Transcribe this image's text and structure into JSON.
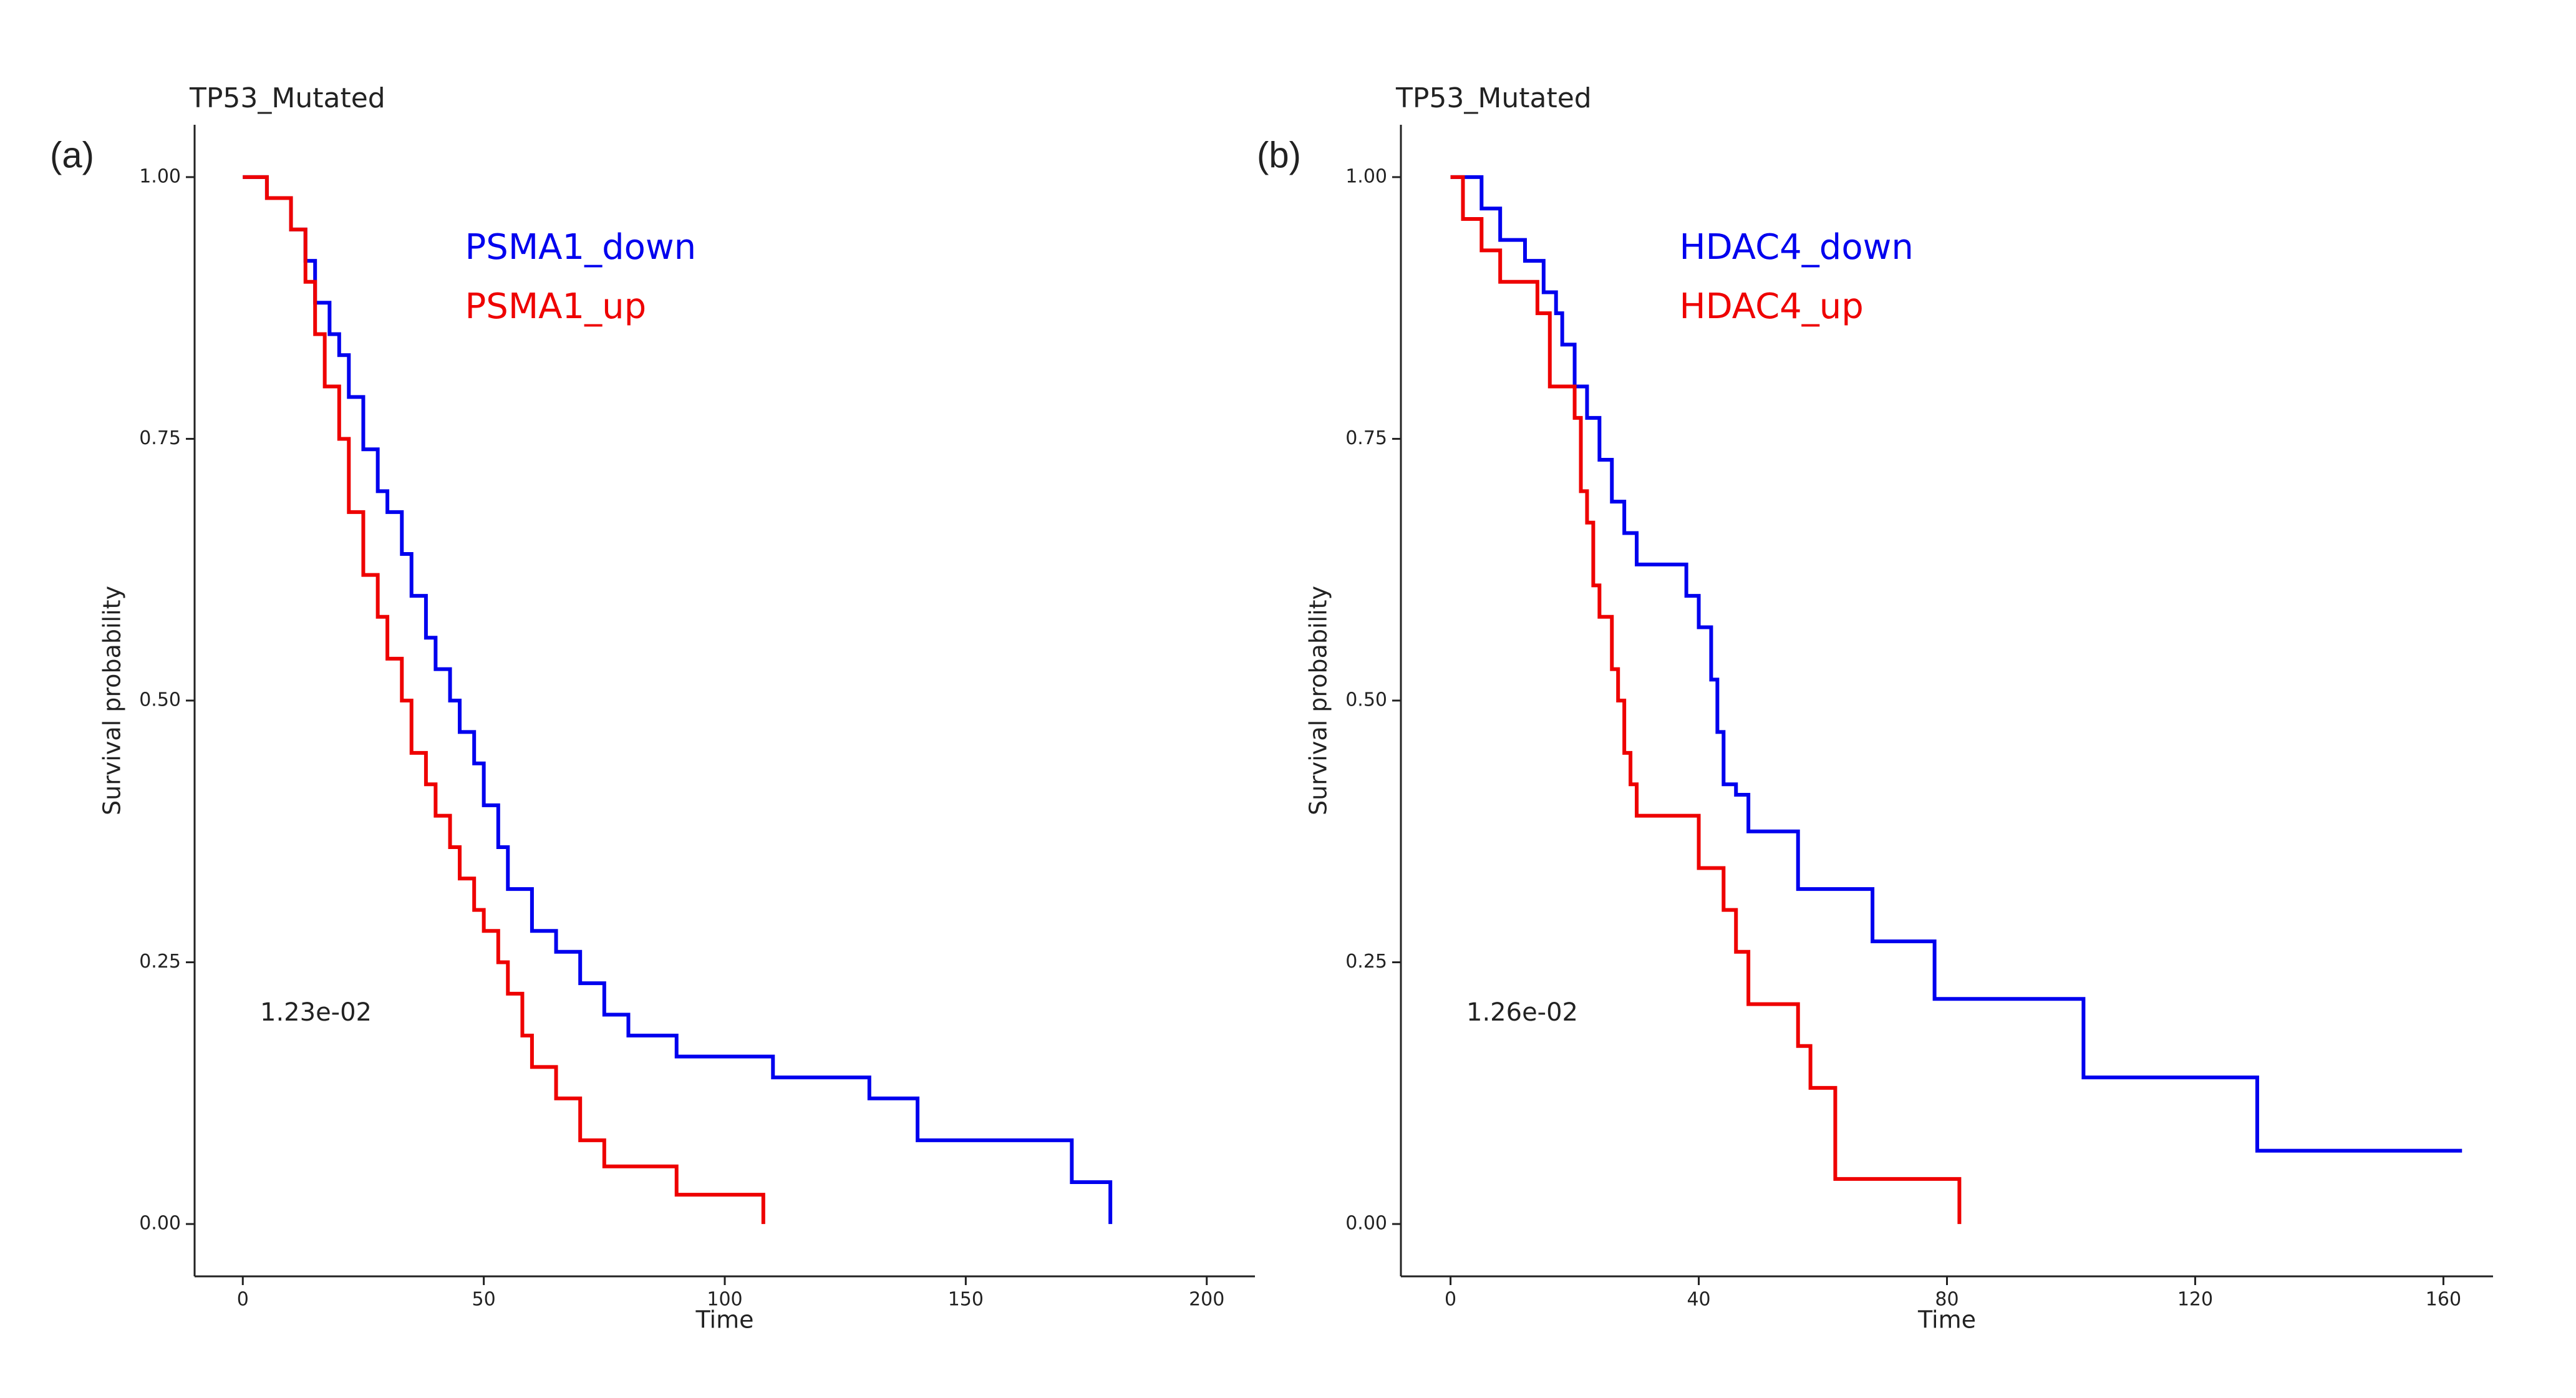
{
  "chart_data": [
    {
      "type": "step",
      "panel": "(a)",
      "title": "TP53_Mutated",
      "x_label": "Time",
      "y_label": "Survival probability",
      "annotation": "1.23e-02",
      "xlim": [
        -10,
        210
      ],
      "xticks": [
        0,
        50,
        100,
        150,
        200
      ],
      "ylim": [
        -0.05,
        1.05
      ],
      "yticks": [
        {
          "value": 0,
          "label": "0.00"
        },
        {
          "value": 0.25,
          "label": "0.25"
        },
        {
          "value": 0.5,
          "label": "0.50"
        },
        {
          "value": 0.75,
          "label": "0.75"
        },
        {
          "value": 1,
          "label": "1.00"
        }
      ],
      "series": [
        {
          "name": "PSMA1_down",
          "color": "#0000ee",
          "x": [
            0,
            5,
            10,
            13,
            15,
            18,
            20,
            22,
            25,
            28,
            30,
            33,
            35,
            38,
            40,
            43,
            45,
            48,
            50,
            53,
            55,
            60,
            65,
            70,
            75,
            80,
            90,
            110,
            130,
            140,
            172,
            180
          ],
          "values": [
            1,
            0.98,
            0.95,
            0.92,
            0.88,
            0.85,
            0.83,
            0.79,
            0.74,
            0.7,
            0.68,
            0.64,
            0.6,
            0.56,
            0.53,
            0.5,
            0.47,
            0.44,
            0.4,
            0.36,
            0.32,
            0.28,
            0.26,
            0.23,
            0.2,
            0.18,
            0.16,
            0.14,
            0.12,
            0.08,
            0.04,
            0
          ]
        },
        {
          "name": "PSMA1_up",
          "color": "#ee0000",
          "x": [
            0,
            5,
            10,
            13,
            15,
            17,
            20,
            22,
            25,
            28,
            30,
            33,
            35,
            38,
            40,
            43,
            45,
            48,
            50,
            53,
            55,
            58,
            60,
            65,
            70,
            75,
            90,
            108
          ],
          "values": [
            1,
            0.98,
            0.95,
            0.9,
            0.85,
            0.8,
            0.75,
            0.68,
            0.62,
            0.58,
            0.54,
            0.5,
            0.45,
            0.42,
            0.39,
            0.36,
            0.33,
            0.3,
            0.28,
            0.25,
            0.22,
            0.18,
            0.15,
            0.12,
            0.08,
            0.055,
            0.028,
            0
          ]
        }
      ]
    },
    {
      "type": "step",
      "panel": "(b)",
      "title": "TP53_Mutated",
      "x_label": "Time",
      "y_label": "Survival probability",
      "annotation": "1.26e-02",
      "xlim": [
        -8,
        168
      ],
      "xticks": [
        0,
        40,
        80,
        120,
        160
      ],
      "ylim": [
        -0.05,
        1.05
      ],
      "yticks": [
        {
          "value": 0,
          "label": "0.00"
        },
        {
          "value": 0.25,
          "label": "0.25"
        },
        {
          "value": 0.5,
          "label": "0.50"
        },
        {
          "value": 0.75,
          "label": "0.75"
        },
        {
          "value": 1,
          "label": "1.00"
        }
      ],
      "series": [
        {
          "name": "HDAC4_down",
          "color": "#0000ee",
          "x": [
            0,
            5,
            8,
            12,
            15,
            17,
            18,
            20,
            22,
            24,
            26,
            28,
            30,
            38,
            40,
            42,
            43,
            44,
            46,
            48,
            56,
            68,
            78,
            102,
            130,
            163
          ],
          "values": [
            1,
            0.97,
            0.94,
            0.92,
            0.89,
            0.87,
            0.84,
            0.8,
            0.77,
            0.73,
            0.69,
            0.66,
            0.63,
            0.6,
            0.57,
            0.52,
            0.47,
            0.42,
            0.41,
            0.375,
            0.32,
            0.27,
            0.215,
            0.14,
            0.07,
            0.07
          ]
        },
        {
          "name": "HDAC4_up",
          "color": "#ee0000",
          "x": [
            0,
            2,
            5,
            8,
            14,
            16,
            20,
            21,
            22,
            23,
            24,
            26,
            27,
            28,
            29,
            30,
            37,
            40,
            44,
            46,
            48,
            56,
            58,
            62,
            82
          ],
          "values": [
            1,
            0.96,
            0.93,
            0.9,
            0.87,
            0.8,
            0.77,
            0.7,
            0.67,
            0.61,
            0.58,
            0.53,
            0.5,
            0.45,
            0.42,
            0.39,
            0.39,
            0.34,
            0.3,
            0.26,
            0.21,
            0.17,
            0.13,
            0.043,
            0
          ]
        }
      ]
    }
  ]
}
